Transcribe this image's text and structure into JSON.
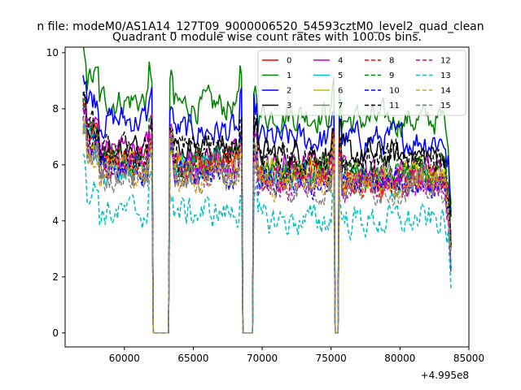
{
  "chart_data": {
    "type": "line",
    "suptitle": "n file: modeM0/AS1A14_127T09_9000006520_54593cztM0_level2_quad_clean",
    "title": "Quadrant 0 module wise count rates with 100.0s bins.",
    "xlabel": "",
    "ylabel": "",
    "x_offset_label": "+4.995e8",
    "xlim": [
      55700,
      85000
    ],
    "ylim": [
      -0.5,
      10.2
    ],
    "x_ticks": [
      60000,
      65000,
      70000,
      75000,
      80000,
      85000
    ],
    "x_tick_labels": [
      "60000",
      "65000",
      "70000",
      "75000",
      "80000",
      "85000"
    ],
    "y_ticks": [
      0,
      2,
      4,
      6,
      8,
      10
    ],
    "y_tick_labels": [
      "0",
      "2",
      "4",
      "6",
      "8",
      "10"
    ],
    "legend_position": "top-right",
    "segments": [
      [
        57000,
        62000
      ],
      [
        63300,
        68550
      ],
      [
        69400,
        75250
      ],
      [
        75550,
        83700
      ]
    ],
    "series": [
      {
        "name": "0",
        "color": "#ff0000",
        "dash": "solid",
        "base": [
          6.2,
          6.1,
          5.7,
          5.4
        ]
      },
      {
        "name": "1",
        "color": "#008000",
        "dash": "solid",
        "base": [
          8.3,
          8.1,
          7.8,
          7.6
        ]
      },
      {
        "name": "2",
        "color": "#0000ff",
        "dash": "solid",
        "base": [
          7.6,
          7.2,
          6.9,
          6.9
        ]
      },
      {
        "name": "3",
        "color": "#000000",
        "dash": "solid",
        "base": [
          6.5,
          6.6,
          6.4,
          6.3
        ]
      },
      {
        "name": "4",
        "color": "#bf00bf",
        "dash": "solid",
        "base": [
          6.6,
          6.2,
          5.9,
          5.8
        ]
      },
      {
        "name": "5",
        "color": "#00bfbf",
        "dash": "solid",
        "base": [
          6.0,
          5.9,
          5.6,
          5.4
        ]
      },
      {
        "name": "6",
        "color": "#bfbf00",
        "dash": "solid",
        "base": [
          6.1,
          6.0,
          5.7,
          5.6
        ]
      },
      {
        "name": "7",
        "color": "#808080",
        "dash": "solid",
        "base": [
          5.8,
          5.8,
          5.6,
          5.5
        ]
      },
      {
        "name": "8",
        "color": "#ff0000",
        "dash": "dashed",
        "base": [
          6.1,
          5.9,
          5.6,
          5.4
        ]
      },
      {
        "name": "9",
        "color": "#008000",
        "dash": "dashed",
        "base": [
          6.3,
          6.1,
          5.8,
          5.7
        ]
      },
      {
        "name": "10",
        "color": "#0000ff",
        "dash": "dashed",
        "base": [
          5.9,
          5.6,
          5.3,
          5.3
        ]
      },
      {
        "name": "11",
        "color": "#000000",
        "dash": "dashed",
        "base": [
          6.4,
          6.5,
          6.3,
          6.2
        ]
      },
      {
        "name": "12",
        "color": "#bf00bf",
        "dash": "dashed",
        "base": [
          5.9,
          5.8,
          5.4,
          5.3
        ]
      },
      {
        "name": "13",
        "color": "#00bfbf",
        "dash": "dashed",
        "base": [
          4.3,
          4.3,
          4.0,
          4.0
        ]
      },
      {
        "name": "14",
        "color": "#d4a017",
        "dash": "dashed",
        "base": [
          5.7,
          5.6,
          5.4,
          5.3
        ]
      },
      {
        "name": "15",
        "color": "#808080",
        "dash": "dashed",
        "base": [
          5.6,
          5.6,
          5.2,
          5.2
        ]
      }
    ]
  }
}
